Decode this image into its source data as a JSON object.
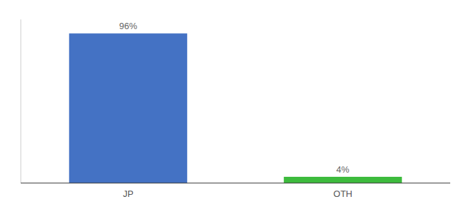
{
  "chart_data": {
    "type": "bar",
    "categories": [
      "JP",
      "OTH"
    ],
    "values": [
      96,
      4
    ],
    "value_labels": [
      "96%",
      "4%"
    ],
    "colors": [
      "#4472c4",
      "#3dbb3d"
    ],
    "ylim": [
      0,
      105
    ],
    "data_labels": true,
    "tick_labels": "x",
    "grid": false
  }
}
